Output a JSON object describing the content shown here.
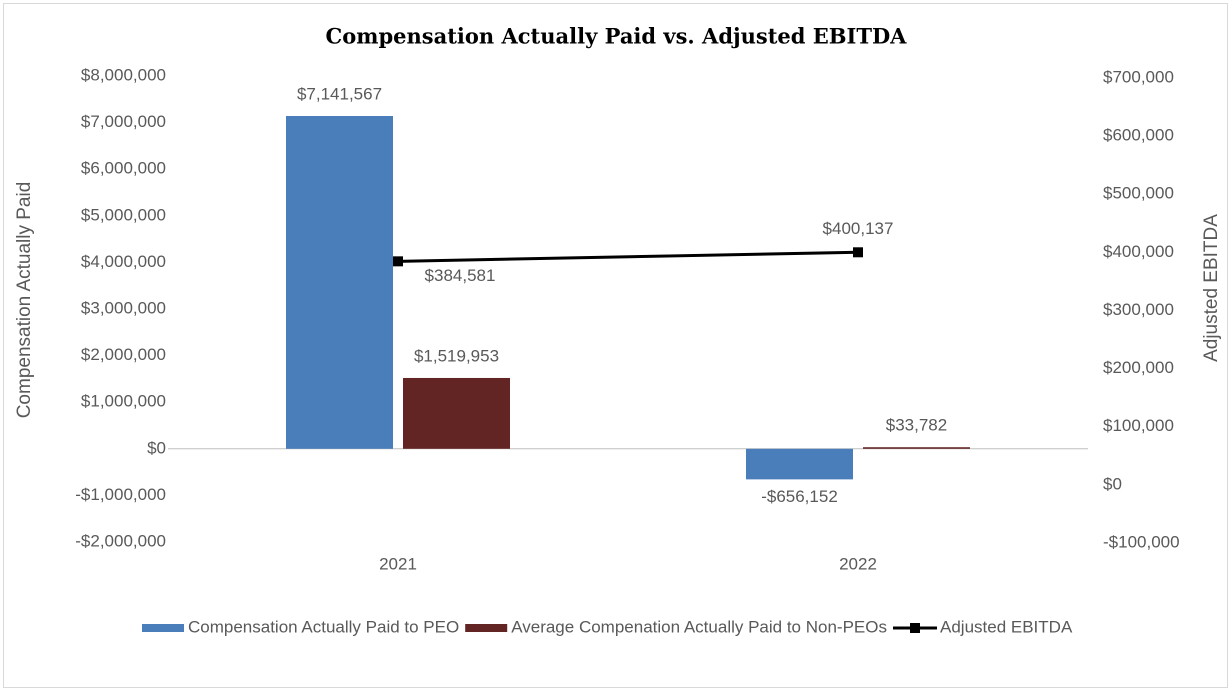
{
  "chart_data": {
    "type": "bar",
    "title": "Compensation Actually Paid vs. Adjusted EBITDA",
    "y_label": "Compensation Actually Paid",
    "y2_label": "Adjusted EBITDA",
    "categories": [
      "2021",
      "2022"
    ],
    "series": [
      {
        "name": "Compensation Actually Paid to PEO",
        "color": "#4a7ebb",
        "type": "bar",
        "values": [
          7141567,
          -656152
        ],
        "value_labels": [
          "$7,141,567",
          "-$656,152"
        ]
      },
      {
        "name": "Average Compenation Actually Paid to Non-PEOs",
        "color": "#632523",
        "type": "bar",
        "values": [
          1519953,
          33782
        ],
        "value_labels": [
          "$1,519,953",
          "$33,782"
        ]
      },
      {
        "name": "Adjusted EBITDA",
        "color": "#000000",
        "type": "line",
        "axis": "y2",
        "values": [
          384581,
          400137
        ],
        "value_labels": [
          "$384,581",
          "$400,137"
        ]
      }
    ],
    "ylim": [
      -2000000,
      8000000
    ],
    "yticks": [
      {
        "value": -2000000,
        "label": "-$2,000,000"
      },
      {
        "value": -1000000,
        "label": "-$1,000,000"
      },
      {
        "value": 0,
        "label": "$0"
      },
      {
        "value": 1000000,
        "label": "$1,000,000"
      },
      {
        "value": 2000000,
        "label": "$2,000,000"
      },
      {
        "value": 3000000,
        "label": "$3,000,000"
      },
      {
        "value": 4000000,
        "label": "$4,000,000"
      },
      {
        "value": 5000000,
        "label": "$5,000,000"
      },
      {
        "value": 6000000,
        "label": "$6,000,000"
      },
      {
        "value": 7000000,
        "label": "$7,000,000"
      },
      {
        "value": 8000000,
        "label": "$8,000,000"
      }
    ],
    "y2lim": [
      -100000,
      700000
    ],
    "y2ticks": [
      {
        "value": -100000,
        "label": "-$100,000"
      },
      {
        "value": 0,
        "label": "$0"
      },
      {
        "value": 100000,
        "label": "$100,000"
      },
      {
        "value": 200000,
        "label": "$200,000"
      },
      {
        "value": 300000,
        "label": "$300,000"
      },
      {
        "value": 400000,
        "label": "$400,000"
      },
      {
        "value": 500000,
        "label": "$500,000"
      },
      {
        "value": 600000,
        "label": "$600,000"
      },
      {
        "value": 700000,
        "label": "$700,000"
      }
    ],
    "grid": false,
    "legend": "bottom"
  }
}
